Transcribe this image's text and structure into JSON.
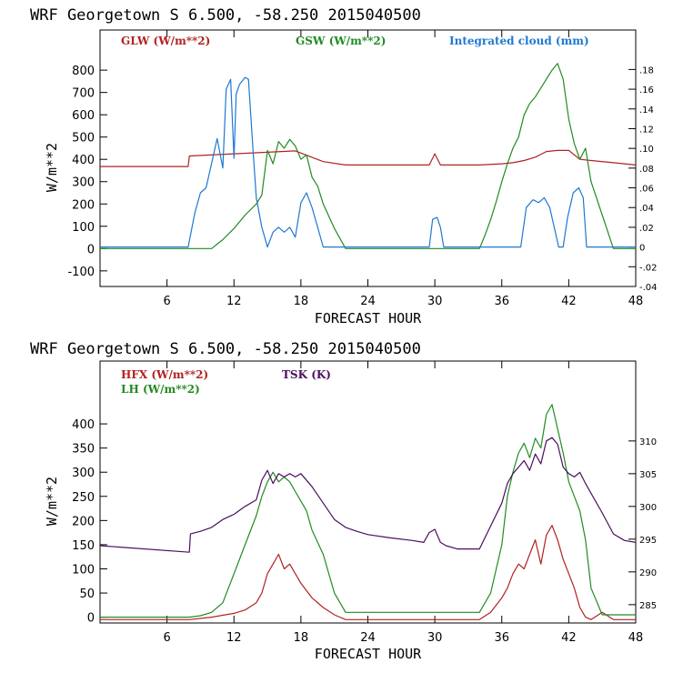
{
  "chart_data": [
    {
      "type": "line",
      "title": "WRF   Georgetown S   6.500, -58.250  2015040500",
      "xlabel": "FORECAST HOUR",
      "ylabel": "W/m**2",
      "xlim": [
        0,
        48
      ],
      "ylim": [
        -170,
        980
      ],
      "xticks": [
        6,
        12,
        18,
        24,
        30,
        36,
        42,
        48
      ],
      "yticks": [
        -100,
        0,
        100,
        200,
        300,
        400,
        500,
        600,
        700,
        800
      ],
      "y2lim": [
        -0.04,
        0.22
      ],
      "y2ticks": [
        "-.04",
        "-.02",
        "0",
        ".02",
        ".04",
        ".06",
        ".08",
        ".10",
        ".12",
        ".14",
        ".16",
        ".18"
      ],
      "y2tick_values": [
        -0.04,
        -0.02,
        0,
        0.02,
        0.04,
        0.06,
        0.08,
        0.1,
        0.12,
        0.14,
        0.16,
        0.18
      ],
      "series": [
        {
          "name": "GLW (W/m**2)",
          "color": "#b22222",
          "axis": "left",
          "x": [
            0,
            7.9,
            8,
            12,
            15,
            17.5,
            20,
            22,
            24,
            29.5,
            30,
            30.5,
            32,
            34,
            36,
            37,
            38,
            39,
            40,
            41,
            42,
            43,
            44,
            46,
            48
          ],
          "y": [
            368,
            368,
            415,
            425,
            432,
            438,
            390,
            375,
            375,
            375,
            425,
            375,
            375,
            375,
            380,
            385,
            395,
            410,
            435,
            440,
            440,
            400,
            395,
            385,
            375
          ]
        },
        {
          "name": "GSW (W/m**2)",
          "color": "#228b22",
          "axis": "left",
          "x": [
            0,
            10,
            10.5,
            11,
            12,
            13,
            14,
            14.5,
            15,
            15.5,
            16,
            16.5,
            17,
            17.5,
            18,
            18.5,
            19,
            19.5,
            20,
            21,
            22,
            34,
            34.5,
            35,
            35.5,
            36,
            36.5,
            37,
            37.5,
            38,
            38.5,
            39,
            39.5,
            40,
            40.5,
            41,
            41.5,
            42,
            42.5,
            43,
            43.5,
            44,
            45,
            46,
            48
          ],
          "y": [
            0,
            0,
            20,
            40,
            90,
            150,
            200,
            240,
            440,
            380,
            480,
            450,
            490,
            460,
            400,
            420,
            320,
            280,
            200,
            90,
            0,
            0,
            60,
            130,
            210,
            300,
            380,
            450,
            500,
            600,
            650,
            680,
            720,
            760,
            800,
            830,
            760,
            580,
            470,
            400,
            450,
            300,
            150,
            0,
            0
          ]
        },
        {
          "name": "Integrated cloud (mm)",
          "color": "#1f78d1",
          "axis": "right",
          "x": [
            0,
            7.9,
            8.5,
            9,
            9.5,
            10,
            10.5,
            11,
            11.3,
            11.7,
            12,
            12.2,
            12.5,
            13,
            13.3,
            13.7,
            14,
            14.5,
            15,
            15.5,
            16,
            16.5,
            17,
            17.5,
            18,
            18.5,
            19,
            19.5,
            20,
            20.5,
            21,
            29.5,
            29.8,
            30.2,
            30.5,
            30.8,
            37.7,
            38.2,
            38.8,
            39.3,
            39.8,
            40.3,
            40.7,
            41.1,
            41.5,
            41.9,
            42.4,
            42.9,
            43.3,
            43.6,
            48
          ],
          "y": [
            0,
            0,
            0.035,
            0.055,
            0.06,
            0.085,
            0.11,
            0.08,
            0.16,
            0.17,
            0.09,
            0.155,
            0.165,
            0.172,
            0.17,
            0.1,
            0.05,
            0.02,
            0,
            0.015,
            0.02,
            0.015,
            0.02,
            0.01,
            0.045,
            0.055,
            0.04,
            0.02,
            0,
            0,
            0,
            0,
            0.028,
            0.03,
            0.02,
            0,
            0,
            0.04,
            0.048,
            0.045,
            0.05,
            0.04,
            0.02,
            0,
            0,
            0.03,
            0.055,
            0.06,
            0.05,
            0,
            0
          ]
        }
      ]
    },
    {
      "type": "line",
      "title": "WRF   Georgetown S   6.500, -58.250  2015040500",
      "xlabel": "FORECAST HOUR",
      "ylabel": "W/m**2",
      "xlim": [
        0,
        48
      ],
      "ylim": [
        -12,
        530
      ],
      "xticks": [
        6,
        12,
        18,
        24,
        30,
        36,
        42,
        48
      ],
      "yticks": [
        0,
        50,
        100,
        150,
        200,
        250,
        300,
        350,
        400
      ],
      "y2lim": [
        282.2,
        322.2
      ],
      "y2ticks": [
        "285",
        "290",
        "295",
        "300",
        "305",
        "310"
      ],
      "y2tick_values": [
        285,
        290,
        295,
        300,
        305,
        310
      ],
      "series": [
        {
          "name": "HFX (W/m**2)",
          "color": "#b22222",
          "axis": "left",
          "x": [
            0,
            8,
            10,
            12,
            13,
            14,
            14.5,
            15,
            15.5,
            16,
            16.5,
            17,
            17.5,
            18,
            19,
            20,
            21,
            22,
            24,
            30,
            34,
            35,
            36,
            36.5,
            37,
            37.5,
            38,
            38.5,
            39,
            39.5,
            40,
            40.5,
            41,
            41.5,
            42,
            42.5,
            43,
            43.5,
            44,
            45,
            46,
            48
          ],
          "y": [
            -5,
            -5,
            0,
            8,
            15,
            30,
            50,
            90,
            110,
            130,
            100,
            110,
            90,
            70,
            40,
            20,
            5,
            -5,
            -5,
            -5,
            -5,
            10,
            40,
            60,
            90,
            110,
            100,
            130,
            160,
            110,
            170,
            190,
            160,
            120,
            90,
            60,
            20,
            0,
            -5,
            10,
            -5,
            -5
          ]
        },
        {
          "name": "LH (W/m**2)",
          "color": "#228b22",
          "axis": "left",
          "x": [
            0,
            8,
            9,
            10,
            11,
            12,
            13,
            14,
            14.5,
            15,
            15.5,
            16,
            16.5,
            17,
            17.5,
            18,
            18.5,
            19,
            20,
            21,
            22,
            30,
            34,
            35,
            36,
            36.5,
            37,
            37.5,
            38,
            38.5,
            39,
            39.5,
            40,
            40.5,
            41,
            41.5,
            42,
            42.5,
            43,
            43.5,
            44,
            45,
            46,
            48
          ],
          "y": [
            0,
            0,
            3,
            10,
            30,
            90,
            150,
            210,
            250,
            280,
            300,
            280,
            290,
            280,
            260,
            240,
            220,
            180,
            130,
            50,
            10,
            10,
            10,
            50,
            150,
            250,
            300,
            340,
            360,
            330,
            370,
            350,
            420,
            440,
            390,
            340,
            280,
            250,
            220,
            160,
            60,
            5,
            5,
            5
          ]
        },
        {
          "name": "TSK (K)",
          "color": "#4b0f5e",
          "axis": "right",
          "x": [
            0,
            8,
            8.1,
            9,
            10,
            11,
            12,
            13,
            14,
            14.5,
            15,
            15.5,
            16,
            16.5,
            17,
            17.5,
            18,
            19,
            20,
            21,
            22,
            23,
            24,
            26,
            28,
            29,
            29.5,
            30,
            30.5,
            31,
            32,
            33,
            34,
            35,
            36,
            36.5,
            37,
            37.5,
            38,
            38.5,
            39,
            39.5,
            40,
            40.5,
            41,
            41.5,
            42,
            42.5,
            43,
            43.5,
            44,
            45,
            46,
            47,
            48
          ],
          "y": [
            294,
            293,
            295.8,
            296.2,
            296.8,
            298,
            298.8,
            300,
            301,
            304,
            305.5,
            303.5,
            305,
            304.5,
            305,
            304.5,
            305,
            303,
            300.5,
            298,
            296.8,
            296.2,
            295.7,
            295.2,
            294.8,
            294.5,
            296,
            296.5,
            294.5,
            294,
            293.5,
            293.5,
            293.5,
            297,
            300.5,
            303.5,
            305,
            306,
            307,
            305.5,
            308,
            306.5,
            310,
            310.5,
            309.5,
            306,
            305,
            304.5,
            305.2,
            303.5,
            302,
            299,
            295.8,
            294.8,
            294.5
          ]
        }
      ]
    }
  ]
}
